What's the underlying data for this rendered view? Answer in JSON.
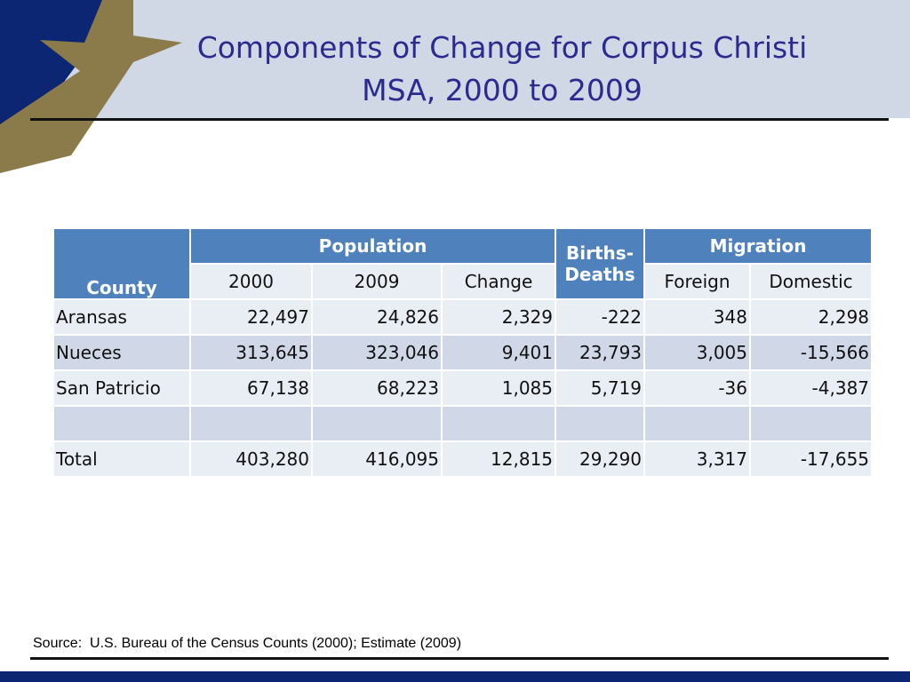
{
  "title": {
    "line1": "Components of Change for Corpus Christi",
    "line2": "MSA, 2000 to 2009"
  },
  "colors": {
    "title": "#2a2a8f",
    "header_band": "#d0d8e6",
    "star": "#8b7a4a",
    "corner": "#0c2674",
    "table_header": "#4f81bd",
    "row_light": "#e9edf4",
    "row_dark": "#d0d8e8"
  },
  "table": {
    "headers": {
      "county": "County",
      "population": "Population",
      "births_deaths": "Births-Deaths",
      "migration": "Migration",
      "y2000": "2000",
      "y2009": "2009",
      "change": "Change",
      "foreign": "Foreign",
      "domestic": "Domestic"
    },
    "rows": [
      {
        "county": "Aransas",
        "y2000": "22,497",
        "y2009": "24,826",
        "change": "2,329",
        "births_deaths": "-222",
        "foreign": "348",
        "domestic": "2,298"
      },
      {
        "county": "Nueces",
        "y2000": "313,645",
        "y2009": "323,046",
        "change": "9,401",
        "births_deaths": "23,793",
        "foreign": "3,005",
        "domestic": "-15,566"
      },
      {
        "county": "San Patricio",
        "y2000": "67,138",
        "y2009": "68,223",
        "change": "1,085",
        "births_deaths": "5,719",
        "foreign": "-36",
        "domestic": "-4,387"
      },
      {
        "county": "",
        "y2000": "",
        "y2009": "",
        "change": "",
        "births_deaths": "",
        "foreign": "",
        "domestic": ""
      },
      {
        "county": "Total",
        "y2000": "403,280",
        "y2009": "416,095",
        "change": "12,815",
        "births_deaths": "29,290",
        "foreign": "3,317",
        "domestic": "-17,655"
      }
    ]
  },
  "source": "Source:  U.S. Bureau of the Census Counts (2000); Estimate (2009)"
}
